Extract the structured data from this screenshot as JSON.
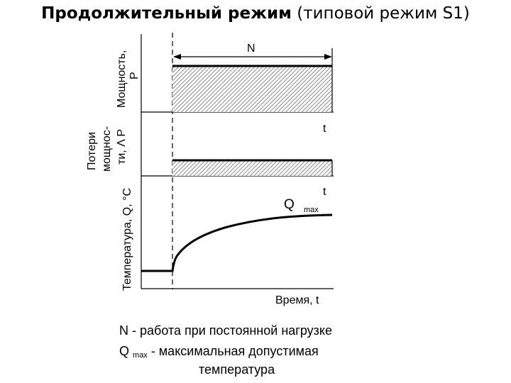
{
  "title": {
    "bold": "Продолжительный режим",
    "rest": " (типовой режим S1)"
  },
  "panels": {
    "power": {
      "ylabel_line1": "Мощность,",
      "ylabel_line2": "P",
      "span_label": "N",
      "t_label": "t"
    },
    "losses": {
      "ylabel_line1": "Потери",
      "ylabel_line2": "мощнос-",
      "ylabel_line3": "ти, Λ P",
      "t_label": "t"
    },
    "temperature": {
      "ylabel": "Температура, Q, °C",
      "qmax_main": "Q",
      "qmax_sub": "max",
      "xlabel": "Время, t"
    }
  },
  "legend": {
    "line1": "N - работа при постоянной нагрузке",
    "line2_main": "Q",
    "line2_sub": "max",
    "line2_rest": " - максимальная допустимая",
    "line3": "температура"
  },
  "colors": {
    "line": "#000000",
    "hatch": "#6e6e6e"
  }
}
